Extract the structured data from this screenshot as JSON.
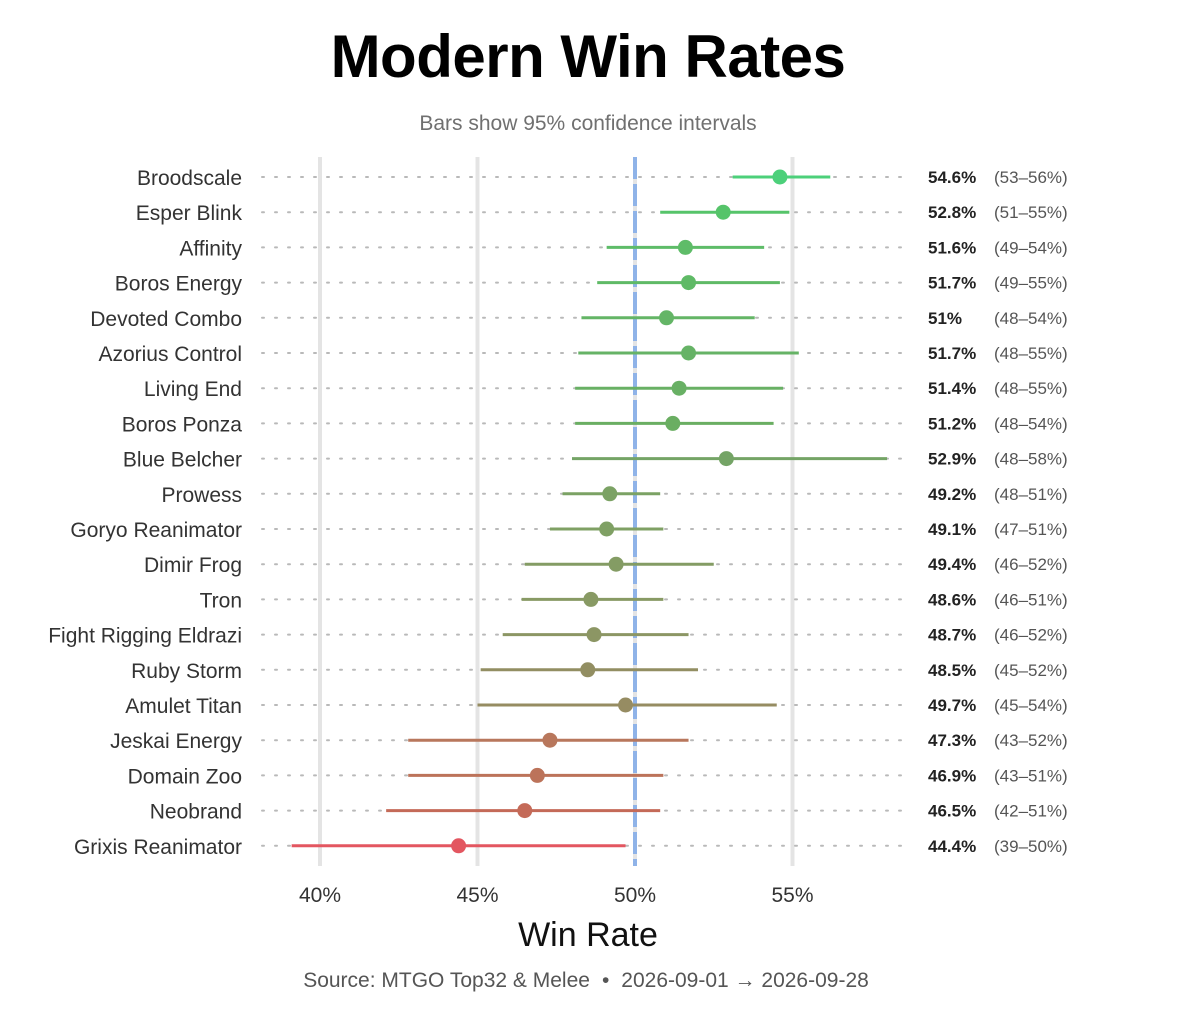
{
  "chart_data": {
    "type": "scatter",
    "title": "Modern Win Rates",
    "subtitle": "Bars show 95% confidence intervals",
    "xlabel": "Win Rate",
    "ylabel": "",
    "xlim": [
      37.8,
      58.5
    ],
    "x_ticks": [
      "40%",
      "45%",
      "50%",
      "55%"
    ],
    "x_tick_values": [
      40,
      45,
      50,
      55
    ],
    "reference_line": 50,
    "reference_color": "#8fb3e8",
    "grid": true,
    "decks": [
      {
        "name": "Broodscale",
        "win_rate": 54.6,
        "label": "54.6%",
        "ci_label": "(53–56%)",
        "lo": 53.1,
        "hi": 56.2,
        "color": "#4cd07a"
      },
      {
        "name": "Esper Blink",
        "win_rate": 52.8,
        "label": "52.8%",
        "ci_label": "(51–55%)",
        "lo": 50.8,
        "hi": 54.9,
        "color": "#56c46a"
      },
      {
        "name": "Affinity",
        "win_rate": 51.6,
        "label": "51.6%",
        "ci_label": "(49–54%)",
        "lo": 49.1,
        "hi": 54.1,
        "color": "#5ebc68"
      },
      {
        "name": "Boros Energy",
        "win_rate": 51.7,
        "label": "51.7%",
        "ci_label": "(49–55%)",
        "lo": 48.8,
        "hi": 54.6,
        "color": "#5fba66"
      },
      {
        "name": "Devoted Combo",
        "win_rate": 51.0,
        "label": "51%",
        "ci_label": "(48–54%)",
        "lo": 48.3,
        "hi": 53.8,
        "color": "#64b566"
      },
      {
        "name": "Azorius Control",
        "win_rate": 51.7,
        "label": "51.7%",
        "ci_label": "(48–55%)",
        "lo": 48.2,
        "hi": 55.2,
        "color": "#66b366"
      },
      {
        "name": "Living End",
        "win_rate": 51.4,
        "label": "51.4%",
        "ci_label": "(48–55%)",
        "lo": 48.1,
        "hi": 54.7,
        "color": "#68b064"
      },
      {
        "name": "Boros Ponza",
        "win_rate": 51.2,
        "label": "51.2%",
        "ci_label": "(48–54%)",
        "lo": 48.1,
        "hi": 54.4,
        "color": "#6aae62"
      },
      {
        "name": "Blue Belcher",
        "win_rate": 52.9,
        "label": "52.9%",
        "ci_label": "(48–58%)",
        "lo": 48.0,
        "hi": 58.0,
        "color": "#74a466"
      },
      {
        "name": "Prowess",
        "win_rate": 49.2,
        "label": "49.2%",
        "ci_label": "(48–51%)",
        "lo": 47.7,
        "hi": 50.8,
        "color": "#7ba264"
      },
      {
        "name": "Goryo Reanimator",
        "win_rate": 49.1,
        "label": "49.1%",
        "ci_label": "(47–51%)",
        "lo": 47.3,
        "hi": 50.9,
        "color": "#7fa064"
      },
      {
        "name": "Dimir Frog",
        "win_rate": 49.4,
        "label": "49.4%",
        "ci_label": "(46–52%)",
        "lo": 46.5,
        "hi": 52.5,
        "color": "#849c64"
      },
      {
        "name": "Tron",
        "win_rate": 48.6,
        "label": "48.6%",
        "ci_label": "(46–51%)",
        "lo": 46.4,
        "hi": 50.9,
        "color": "#889a64"
      },
      {
        "name": "Fight Rigging Eldrazi",
        "win_rate": 48.7,
        "label": "48.7%",
        "ci_label": "(46–52%)",
        "lo": 45.8,
        "hi": 51.7,
        "color": "#8c9664"
      },
      {
        "name": "Ruby Storm",
        "win_rate": 48.5,
        "label": "48.5%",
        "ci_label": "(45–52%)",
        "lo": 45.1,
        "hi": 52.0,
        "color": "#928e62"
      },
      {
        "name": "Amulet Titan",
        "win_rate": 49.7,
        "label": "49.7%",
        "ci_label": "(45–54%)",
        "lo": 45.0,
        "hi": 54.5,
        "color": "#968c62"
      },
      {
        "name": "Jeskai Energy",
        "win_rate": 47.3,
        "label": "47.3%",
        "ci_label": "(43–52%)",
        "lo": 42.8,
        "hi": 51.7,
        "color": "#b8775c"
      },
      {
        "name": "Domain Zoo",
        "win_rate": 46.9,
        "label": "46.9%",
        "ci_label": "(43–51%)",
        "lo": 42.8,
        "hi": 50.9,
        "color": "#bc735a"
      },
      {
        "name": "Neobrand",
        "win_rate": 46.5,
        "label": "46.5%",
        "ci_label": "(42–51%)",
        "lo": 42.1,
        "hi": 50.8,
        "color": "#c46a58"
      },
      {
        "name": "Grixis Reanimator",
        "win_rate": 44.4,
        "label": "44.4%",
        "ci_label": "(39–50%)",
        "lo": 39.1,
        "hi": 49.7,
        "color": "#e35660"
      }
    ]
  },
  "source": {
    "prefix": "Source: MTGO Top32 & Melee",
    "separator": "•",
    "date_range": "2026-09-01 → 2026-09-28"
  }
}
